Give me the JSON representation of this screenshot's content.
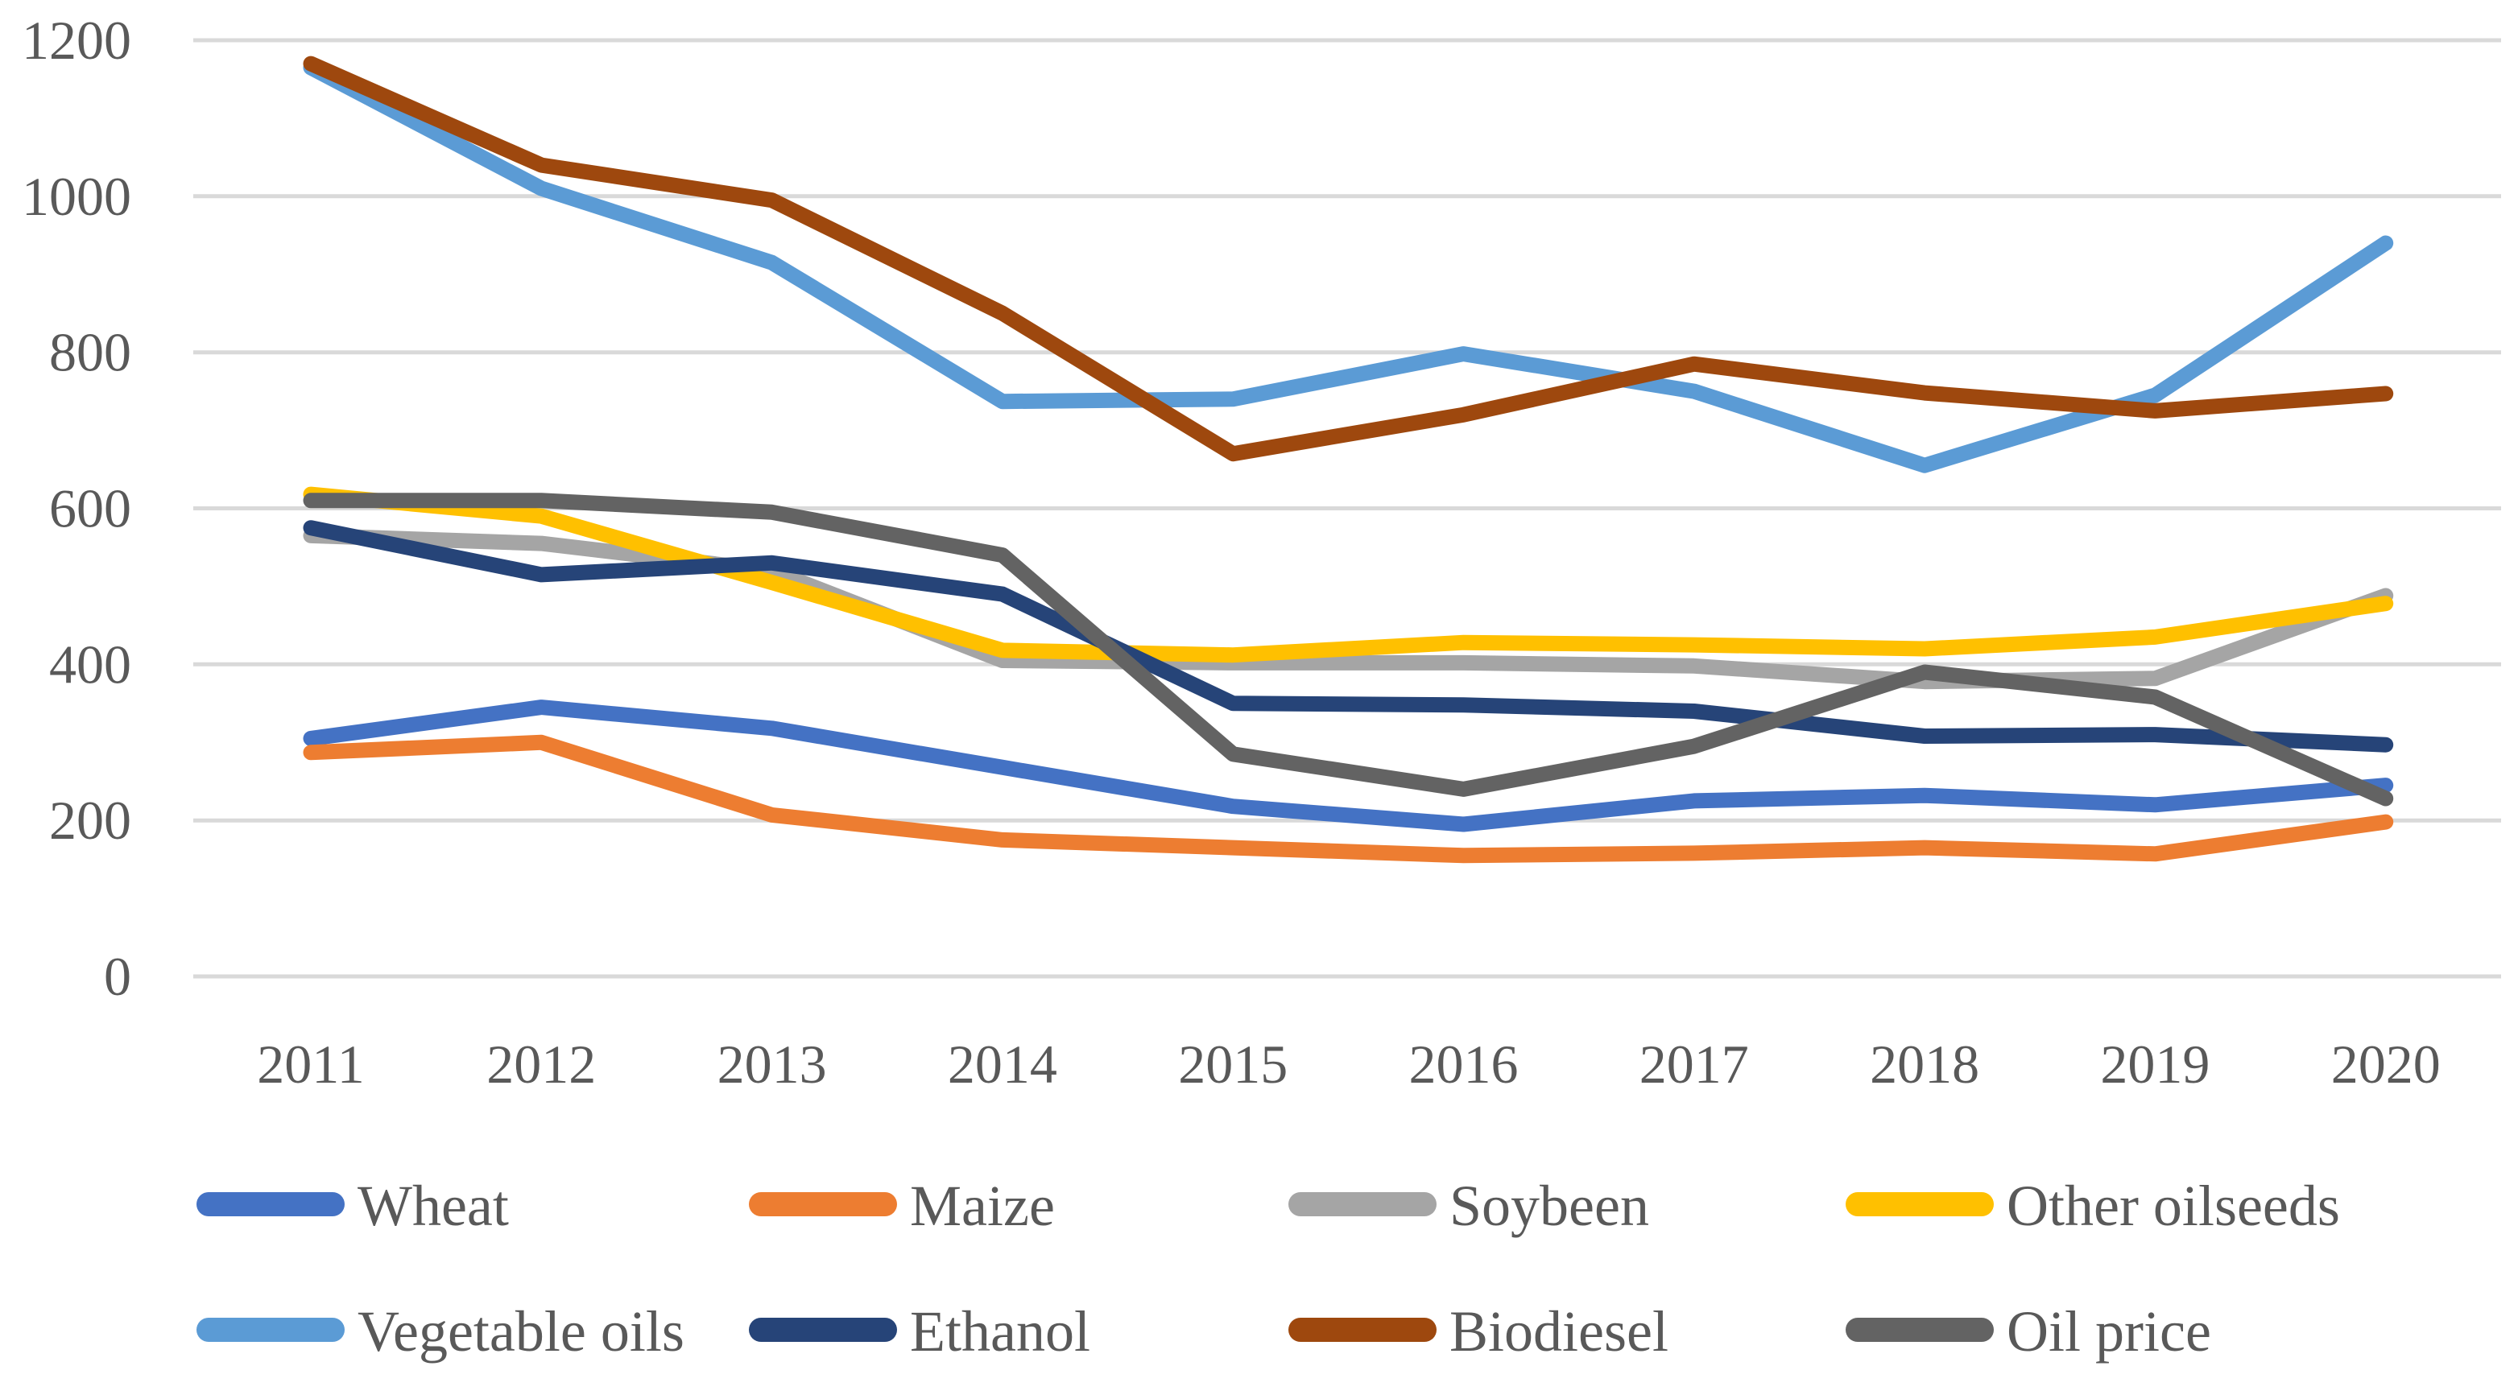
{
  "colors": {
    "background": "#FFFFFF",
    "gridline": "#D9D9D9",
    "axis_text": "#595959"
  },
  "chart_data": {
    "type": "line",
    "x": [
      2011,
      2012,
      2013,
      2014,
      2015,
      2016,
      2017,
      2018,
      2019,
      2020
    ],
    "series": [
      {
        "name": "Wheat",
        "color": "#4472C4",
        "values": [
          305,
          345,
          318,
          268,
          218,
          195,
          225,
          232,
          220,
          245
        ]
      },
      {
        "name": "Maize",
        "color": "#ED7D31",
        "values": [
          287,
          300,
          207,
          175,
          165,
          155,
          158,
          165,
          157,
          198
        ]
      },
      {
        "name": "Soybeen",
        "color": "#A5A5A5",
        "values": [
          565,
          555,
          520,
          405,
          402,
          402,
          398,
          378,
          382,
          488
        ]
      },
      {
        "name": "Other oilseeds",
        "color": "#FFC000",
        "values": [
          618,
          590,
          505,
          418,
          412,
          428,
          425,
          420,
          435,
          478
        ]
      },
      {
        "name": "Vegetable oils",
        "color": "#5B9BD5",
        "values": [
          1165,
          1010,
          915,
          737,
          740,
          798,
          750,
          655,
          745,
          940
        ]
      },
      {
        "name": "Ethanol",
        "color": "#264478",
        "values": [
          575,
          515,
          530,
          490,
          350,
          348,
          340,
          308,
          310,
          297
        ]
      },
      {
        "name": "Biodiesel",
        "color": "#9E480E",
        "values": [
          1170,
          1040,
          995,
          850,
          670,
          720,
          785,
          748,
          725,
          747
        ]
      },
      {
        "name": "Oil price",
        "color": "#636363",
        "values": [
          610,
          610,
          595,
          540,
          285,
          240,
          295,
          390,
          358,
          228
        ]
      }
    ],
    "ylim": [
      0,
      1200
    ],
    "yticks": [
      0,
      200,
      400,
      600,
      800,
      1000,
      1200
    ],
    "grid": true,
    "legend_position": "bottom",
    "legend_rows": [
      [
        "Wheat",
        "Maize",
        "Soybeen",
        "Other oilseeds"
      ],
      [
        "Vegetable oils",
        "Ethanol",
        "Biodiesel",
        "Oil price"
      ]
    ]
  }
}
